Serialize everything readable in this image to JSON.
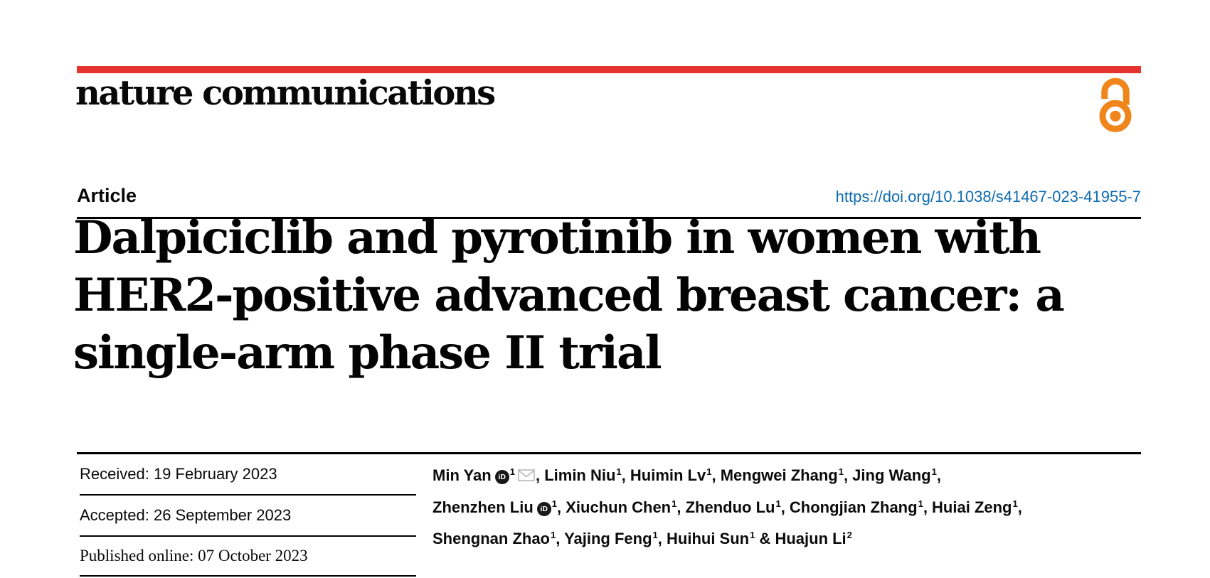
{
  "journal": {
    "name": "nature communications"
  },
  "colors": {
    "brand_red": "#e5332d",
    "open_access_orange": "#f0851c",
    "link_blue": "#0f6cb0"
  },
  "header": {
    "article_label": "Article",
    "doi": "https://doi.org/10.1038/s41467-023-41955-7"
  },
  "title": {
    "lines": [
      "Dalpiciclib and pyrotinib in women with",
      "HER2-positive advanced breast cancer: a",
      "single-arm phase II trial"
    ]
  },
  "dates": {
    "received": "Received: 19 February 2023",
    "accepted": "Accepted: 26 September 2023",
    "published": "Published online: 07 October 2023"
  },
  "icons": {
    "open_access": "open-access-padlock",
    "orcid": "orcid-id-badge",
    "orcid_label": "iD",
    "email": "envelope"
  },
  "authors": {
    "lines": [
      [
        {
          "name": "Min Yan",
          "orcid": true,
          "sup": "1",
          "email": true,
          "sep": ", "
        },
        {
          "name": "Limin Niu",
          "sup": "1",
          "sep": ", "
        },
        {
          "name": "Huimin Lv",
          "sup": "1",
          "sep": ", "
        },
        {
          "name": "Mengwei Zhang",
          "sup": "1",
          "sep": ", "
        },
        {
          "name": "Jing Wang",
          "sup": "1",
          "sep": ","
        }
      ],
      [
        {
          "name": "Zhenzhen Liu",
          "orcid": true,
          "sup": "1",
          "sep": ", "
        },
        {
          "name": "Xiuchun Chen",
          "sup": "1",
          "sep": ", "
        },
        {
          "name": "Zhenduo Lu",
          "sup": "1",
          "sep": ", "
        },
        {
          "name": "Chongjian Zhang",
          "sup": "1",
          "sep": ", "
        },
        {
          "name": "Huiai Zeng",
          "sup": "1",
          "sep": ","
        }
      ],
      [
        {
          "name": "Shengnan Zhao",
          "sup": "1",
          "sep": ", "
        },
        {
          "name": "Yajing Feng",
          "sup": "1",
          "sep": ", "
        },
        {
          "name": "Huihui Sun",
          "sup": "1",
          "sep": " & "
        },
        {
          "name": "Huajun Li",
          "sup": "2",
          "sep": ""
        }
      ]
    ]
  }
}
